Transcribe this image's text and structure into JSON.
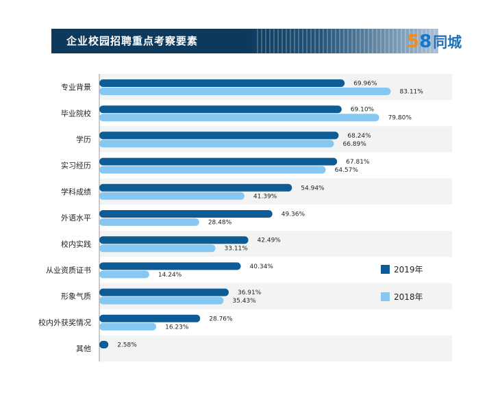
{
  "header": {
    "title": "企业校园招聘重点考察要素"
  },
  "logo": {
    "number_part1": "5",
    "number_part2": "8",
    "name": "同城"
  },
  "chart_data": {
    "type": "bar",
    "orientation": "horizontal",
    "title": "企业校园招聘重点考察要素",
    "categories": [
      "专业背景",
      "毕业院校",
      "学历",
      "实习经历",
      "学科成绩",
      "外语水平",
      "校内实践",
      "从业资质证书",
      "形象气质",
      "校内外获奖情况",
      "其他"
    ],
    "series": [
      {
        "name": "2019年",
        "color": "#0d5c96",
        "values": [
          69.96,
          69.1,
          68.24,
          67.81,
          54.94,
          49.36,
          42.49,
          40.34,
          36.91,
          28.76,
          2.58
        ]
      },
      {
        "name": "2018年",
        "color": "#87c8f2",
        "values": [
          83.11,
          79.8,
          66.89,
          64.57,
          41.39,
          28.48,
          33.11,
          14.24,
          35.43,
          16.23,
          null
        ]
      }
    ],
    "value_labels": {
      "2019年": [
        "69.96%",
        "69.10%",
        "68.24%",
        "67.81%",
        "54.94%",
        "49.36%",
        "42.49%",
        "40.34%",
        "36.91%",
        "28.76%",
        "2.58%"
      ],
      "2018年": [
        "83.11%",
        "79.80%",
        "66.89%",
        "64.57%",
        "41.39%",
        "28.48%",
        "33.11%",
        "14.24%",
        "35.43%",
        "16.23%",
        ""
      ]
    },
    "unit": "%",
    "xlim": [
      0,
      100
    ],
    "legend_position": "bottom-right",
    "grid": false,
    "row_shading": "alternating"
  }
}
